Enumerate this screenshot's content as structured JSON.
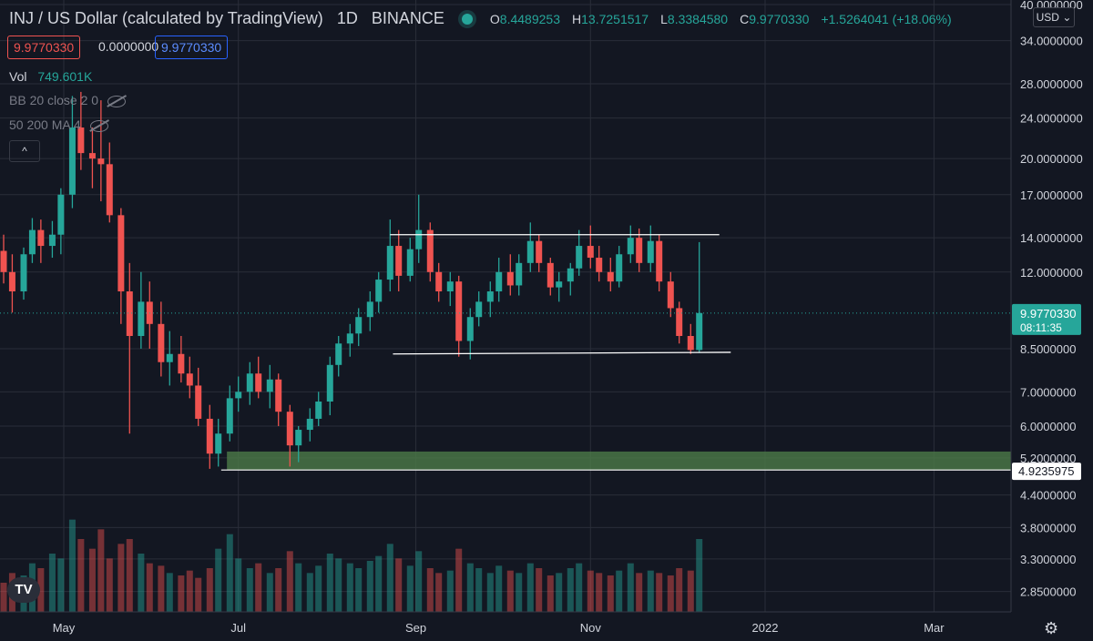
{
  "header": {
    "title": "INJ / US Dollar (calculated by TradingView)",
    "interval": "1D",
    "exchange": "BINANCE",
    "ohlc": [
      {
        "k": "O",
        "v": "8.4489253"
      },
      {
        "k": "H",
        "v": "13.7251517"
      },
      {
        "k": "L",
        "v": "8.3384580"
      },
      {
        "k": "C",
        "v": "9.9770330"
      },
      {
        "k": "",
        "v": "+1.5264041 (+18.06%)"
      }
    ],
    "pill_sell": "9.9770330",
    "pill_spread": "0.0000000",
    "pill_buy": "9.9770330"
  },
  "indicators": {
    "vol_label": "Vol",
    "vol_value": "749.601K",
    "bb": "BB 20 close 2 0",
    "ma": "50 200 MA 4"
  },
  "controls": {
    "currency": "USD",
    "collapse": "^",
    "logo": "TV",
    "settings_icon": "gear-icon"
  },
  "colors": {
    "background": "#131722",
    "up": "#26a69a",
    "down": "#ef5350",
    "grid": "#2a2e39",
    "zone": "#4c7b49"
  },
  "chart_data": {
    "type": "candlestick",
    "scale": "log",
    "ylim": [
      2.6,
      40
    ],
    "y_ticks": [
      "40.0000000",
      "34.0000000",
      "28.0000000",
      "24.0000000",
      "20.0000000",
      "17.0000000",
      "14.0000000",
      "12.0000000",
      "9.9770330",
      "8.5000000",
      "7.0000000",
      "6.0000000",
      "5.2000000",
      "4.9235975",
      "4.4000000",
      "3.8000000",
      "3.3000000",
      "2.8500000"
    ],
    "x_ticks": [
      "May",
      "Jul",
      "Sep",
      "Nov",
      "2022",
      "Mar"
    ],
    "last_price": "9.9770330",
    "countdown": "08:11:35",
    "horizontal_line_label": "4.9235975",
    "resistance": 14.2,
    "support": 8.3,
    "demand_zone": [
      4.92,
      5.35
    ],
    "dates": [
      "2021-04-10",
      "2021-04-13",
      "2021-04-17",
      "2021-04-20",
      "2021-04-23",
      "2021-04-27",
      "2021-04-30",
      "2021-05-04",
      "2021-05-07",
      "2021-05-11",
      "2021-05-14",
      "2021-05-17",
      "2021-05-21",
      "2021-05-24",
      "2021-05-28",
      "2021-05-31",
      "2021-06-04",
      "2021-06-07",
      "2021-06-11",
      "2021-06-14",
      "2021-06-17",
      "2021-06-21",
      "2021-06-24",
      "2021-06-28",
      "2021-07-01",
      "2021-07-05",
      "2021-07-08",
      "2021-07-12",
      "2021-07-15",
      "2021-07-19",
      "2021-07-22",
      "2021-07-26",
      "2021-07-29",
      "2021-08-02",
      "2021-08-05",
      "2021-08-09",
      "2021-08-12",
      "2021-08-16",
      "2021-08-19",
      "2021-08-23",
      "2021-08-26",
      "2021-08-30",
      "2021-09-02",
      "2021-09-06",
      "2021-09-09",
      "2021-09-13",
      "2021-09-16",
      "2021-09-20",
      "2021-09-23",
      "2021-09-27",
      "2021-09-30",
      "2021-10-04",
      "2021-10-07",
      "2021-10-11",
      "2021-10-14",
      "2021-10-18",
      "2021-10-21",
      "2021-10-25",
      "2021-10-28",
      "2021-11-01",
      "2021-11-04",
      "2021-11-08",
      "2021-11-11",
      "2021-11-15",
      "2021-11-18",
      "2021-11-22",
      "2021-11-25",
      "2021-11-29",
      "2021-12-02",
      "2021-12-06",
      "2021-12-09"
    ],
    "candles": [
      {
        "o": 13.2,
        "h": 14.2,
        "l": 11.4,
        "c": 12.0
      },
      {
        "o": 12.0,
        "h": 13.0,
        "l": 10.0,
        "c": 11.0
      },
      {
        "o": 11.0,
        "h": 13.4,
        "l": 10.6,
        "c": 13.0
      },
      {
        "o": 13.0,
        "h": 15.3,
        "l": 12.5,
        "c": 14.5
      },
      {
        "o": 14.5,
        "h": 15.2,
        "l": 12.5,
        "c": 13.5
      },
      {
        "o": 13.5,
        "h": 15.1,
        "l": 12.8,
        "c": 14.2
      },
      {
        "o": 14.2,
        "h": 17.5,
        "l": 13.0,
        "c": 17.0
      },
      {
        "o": 17.0,
        "h": 26.5,
        "l": 16.0,
        "c": 23.0
      },
      {
        "o": 23.0,
        "h": 27.0,
        "l": 19.0,
        "c": 20.5
      },
      {
        "o": 20.5,
        "h": 23.0,
        "l": 17.5,
        "c": 20.0
      },
      {
        "o": 20.0,
        "h": 26.0,
        "l": 16.5,
        "c": 19.5
      },
      {
        "o": 19.5,
        "h": 21.5,
        "l": 15.0,
        "c": 15.5
      },
      {
        "o": 15.5,
        "h": 16.0,
        "l": 9.5,
        "c": 11.0
      },
      {
        "o": 11.0,
        "h": 12.5,
        "l": 5.8,
        "c": 9.0
      },
      {
        "o": 9.0,
        "h": 12.0,
        "l": 8.5,
        "c": 10.5
      },
      {
        "o": 10.5,
        "h": 11.5,
        "l": 8.5,
        "c": 9.5
      },
      {
        "o": 9.5,
        "h": 10.5,
        "l": 7.5,
        "c": 8.0
      },
      {
        "o": 8.0,
        "h": 9.2,
        "l": 7.2,
        "c": 8.3
      },
      {
        "o": 8.3,
        "h": 9.0,
        "l": 7.3,
        "c": 7.6
      },
      {
        "o": 7.6,
        "h": 8.2,
        "l": 6.8,
        "c": 7.2
      },
      {
        "o": 7.2,
        "h": 7.8,
        "l": 6.0,
        "c": 6.2
      },
      {
        "o": 6.2,
        "h": 6.6,
        "l": 4.95,
        "c": 5.3
      },
      {
        "o": 5.3,
        "h": 6.2,
        "l": 5.0,
        "c": 5.8
      },
      {
        "o": 5.8,
        "h": 7.2,
        "l": 5.6,
        "c": 6.8
      },
      {
        "o": 6.8,
        "h": 7.5,
        "l": 6.4,
        "c": 7.0
      },
      {
        "o": 7.0,
        "h": 8.0,
        "l": 6.6,
        "c": 7.6
      },
      {
        "o": 7.6,
        "h": 8.2,
        "l": 6.8,
        "c": 7.0
      },
      {
        "o": 7.0,
        "h": 7.9,
        "l": 6.5,
        "c": 7.4
      },
      {
        "o": 7.4,
        "h": 7.6,
        "l": 6.0,
        "c": 6.4
      },
      {
        "o": 6.4,
        "h": 6.6,
        "l": 5.0,
        "c": 5.5
      },
      {
        "o": 5.5,
        "h": 6.0,
        "l": 5.1,
        "c": 5.9
      },
      {
        "o": 5.9,
        "h": 6.5,
        "l": 5.6,
        "c": 6.2
      },
      {
        "o": 6.2,
        "h": 7.0,
        "l": 6.0,
        "c": 6.7
      },
      {
        "o": 6.7,
        "h": 8.2,
        "l": 6.3,
        "c": 7.9
      },
      {
        "o": 7.9,
        "h": 9.0,
        "l": 7.5,
        "c": 8.7
      },
      {
        "o": 8.7,
        "h": 9.5,
        "l": 8.2,
        "c": 9.1
      },
      {
        "o": 9.1,
        "h": 10.2,
        "l": 8.6,
        "c": 9.8
      },
      {
        "o": 9.8,
        "h": 11.0,
        "l": 9.2,
        "c": 10.5
      },
      {
        "o": 10.5,
        "h": 12.0,
        "l": 10.0,
        "c": 11.6
      },
      {
        "o": 11.6,
        "h": 15.2,
        "l": 11.0,
        "c": 13.5
      },
      {
        "o": 13.5,
        "h": 14.5,
        "l": 11.0,
        "c": 11.8
      },
      {
        "o": 11.8,
        "h": 14.0,
        "l": 11.5,
        "c": 13.3
      },
      {
        "o": 13.3,
        "h": 17.0,
        "l": 12.5,
        "c": 14.5
      },
      {
        "o": 14.5,
        "h": 15.0,
        "l": 11.5,
        "c": 12.0
      },
      {
        "o": 12.0,
        "h": 12.5,
        "l": 10.5,
        "c": 11.0
      },
      {
        "o": 11.0,
        "h": 12.0,
        "l": 10.3,
        "c": 11.5
      },
      {
        "o": 11.5,
        "h": 11.8,
        "l": 8.2,
        "c": 8.8
      },
      {
        "o": 8.8,
        "h": 10.2,
        "l": 8.1,
        "c": 9.8
      },
      {
        "o": 9.8,
        "h": 11.0,
        "l": 9.4,
        "c": 10.5
      },
      {
        "o": 10.5,
        "h": 11.5,
        "l": 9.8,
        "c": 11.0
      },
      {
        "o": 11.0,
        "h": 12.8,
        "l": 10.5,
        "c": 12.0
      },
      {
        "o": 12.0,
        "h": 13.0,
        "l": 10.8,
        "c": 11.3
      },
      {
        "o": 11.3,
        "h": 13.0,
        "l": 10.8,
        "c": 12.5
      },
      {
        "o": 12.5,
        "h": 15.0,
        "l": 12.0,
        "c": 13.8
      },
      {
        "o": 13.8,
        "h": 14.2,
        "l": 12.0,
        "c": 12.5
      },
      {
        "o": 12.5,
        "h": 12.8,
        "l": 10.8,
        "c": 11.2
      },
      {
        "o": 11.2,
        "h": 12.0,
        "l": 10.5,
        "c": 11.5
      },
      {
        "o": 11.5,
        "h": 12.5,
        "l": 10.8,
        "c": 12.2
      },
      {
        "o": 12.2,
        "h": 14.5,
        "l": 11.8,
        "c": 13.5
      },
      {
        "o": 13.5,
        "h": 14.8,
        "l": 12.2,
        "c": 12.8
      },
      {
        "o": 12.8,
        "h": 13.5,
        "l": 11.5,
        "c": 12.0
      },
      {
        "o": 12.0,
        "h": 12.8,
        "l": 11.0,
        "c": 11.5
      },
      {
        "o": 11.5,
        "h": 13.5,
        "l": 11.2,
        "c": 13.0
      },
      {
        "o": 13.0,
        "h": 14.8,
        "l": 12.5,
        "c": 14.0
      },
      {
        "o": 14.0,
        "h": 14.6,
        "l": 12.0,
        "c": 12.5
      },
      {
        "o": 12.5,
        "h": 14.8,
        "l": 12.0,
        "c": 13.8
      },
      {
        "o": 13.8,
        "h": 14.2,
        "l": 11.0,
        "c": 11.5
      },
      {
        "o": 11.5,
        "h": 12.0,
        "l": 9.8,
        "c": 10.2
      },
      {
        "o": 10.2,
        "h": 10.5,
        "l": 8.7,
        "c": 9.0
      },
      {
        "o": 9.0,
        "h": 9.5,
        "l": 8.3,
        "c": 8.45
      },
      {
        "o": 8.45,
        "h": 13.73,
        "l": 8.34,
        "c": 9.98
      }
    ],
    "volume": [
      1.2,
      1.6,
      1.5,
      2.0,
      1.8,
      2.4,
      2.2,
      3.8,
      3.0,
      2.6,
      3.4,
      2.2,
      2.8,
      3.0,
      2.4,
      2.0,
      1.9,
      1.6,
      1.5,
      1.7,
      1.4,
      1.8,
      2.6,
      3.2,
      2.2,
      1.8,
      2.0,
      1.6,
      1.8,
      2.5,
      2.0,
      1.6,
      1.9,
      2.4,
      2.2,
      2.0,
      1.8,
      2.1,
      2.3,
      2.8,
      2.2,
      1.9,
      2.5,
      1.8,
      1.6,
      1.7,
      2.6,
      2.0,
      1.8,
      1.6,
      1.9,
      1.7,
      1.6,
      2.0,
      1.8,
      1.5,
      1.6,
      1.8,
      2.0,
      1.7,
      1.6,
      1.5,
      1.7,
      2.0,
      1.6,
      1.7,
      1.6,
      1.5,
      1.8,
      1.7,
      3.0
    ]
  }
}
